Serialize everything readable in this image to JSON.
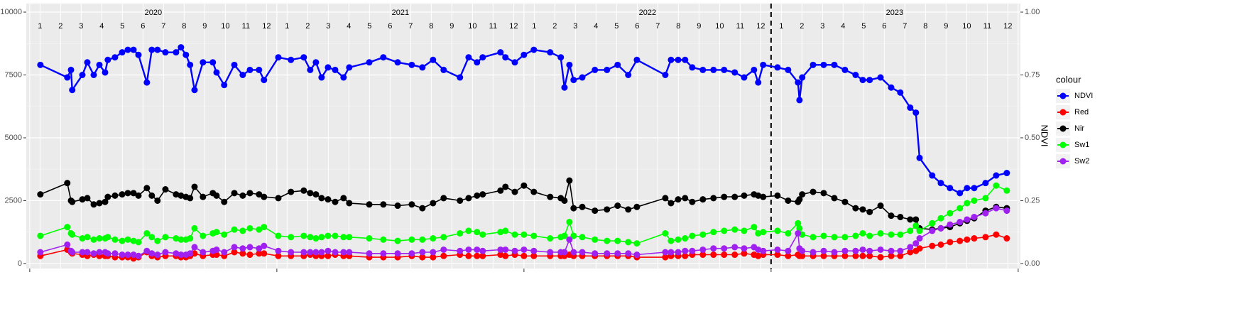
{
  "chart_data": {
    "type": "line",
    "y2_title": "NDVI",
    "legend_title": "colour",
    "legend": "right",
    "grid": true,
    "xlim": [
      2019.986,
      2024.009
    ],
    "xticks": [
      2020,
      2021,
      2022,
      2023,
      2024
    ],
    "ylim": [
      -200,
      10340
    ],
    "yticks": [
      0,
      2500,
      5000,
      7500,
      10000
    ],
    "y2lim": [
      -0.02,
      1.034
    ],
    "y2ticks": [
      {
        "value": 0,
        "label": "0.00"
      },
      {
        "value": 0.25,
        "label": "0.25"
      },
      {
        "value": 0.5,
        "label": "0.50"
      },
      {
        "value": 0.75,
        "label": "0.75"
      },
      {
        "value": 1,
        "label": "1.00"
      }
    ],
    "years": [
      2020,
      2021,
      2022,
      2023
    ],
    "months": [
      1,
      2,
      3,
      4,
      5,
      6,
      7,
      8,
      9,
      10,
      11,
      12
    ],
    "vline": 2023,
    "x": [
      2020.043,
      2020.152,
      2020.167,
      2020.172,
      2020.213,
      2020.233,
      2020.259,
      2020.282,
      2020.305,
      2020.316,
      2020.345,
      2020.374,
      2020.397,
      2020.42,
      2020.44,
      2020.474,
      2020.494,
      2020.517,
      2020.549,
      2020.592,
      2020.612,
      2020.632,
      2020.649,
      2020.667,
      2020.701,
      2020.741,
      2020.756,
      2020.787,
      2020.828,
      2020.862,
      2020.891,
      2020.928,
      2020.948,
      2021.006,
      2021.057,
      2021.109,
      2021.135,
      2021.158,
      2021.181,
      2021.207,
      2021.236,
      2021.27,
      2021.293,
      2021.374,
      2021.431,
      2021.489,
      2021.546,
      2021.589,
      2021.632,
      2021.675,
      2021.741,
      2021.776,
      2021.81,
      2021.833,
      2021.905,
      2021.925,
      2021.963,
      2022.0,
      2022.04,
      2022.106,
      2022.149,
      2022.164,
      2022.184,
      2022.201,
      2022.236,
      2022.287,
      2022.336,
      2022.379,
      2022.422,
      2022.457,
      2022.572,
      2022.595,
      2022.624,
      2022.652,
      2022.681,
      2022.724,
      2022.767,
      2022.81,
      2022.853,
      2022.891,
      2022.931,
      2022.948,
      2022.968,
      2023.026,
      2023.069,
      2023.109,
      2023.115,
      2023.126,
      2023.17,
      2023.213,
      2023.256,
      2023.299,
      2023.342,
      2023.371,
      2023.399,
      2023.443,
      2023.486,
      2023.523,
      2023.563,
      2023.586,
      2023.601,
      2023.652,
      2023.687,
      2023.724,
      2023.764,
      2023.793,
      2023.822,
      2023.868,
      2023.911,
      2023.954
    ],
    "series": [
      {
        "name": "NDVI",
        "color": "#0000ff",
        "axis": "y2",
        "values": [
          0.79,
          0.74,
          0.77,
          0.69,
          0.75,
          0.8,
          0.75,
          0.79,
          0.76,
          0.81,
          0.82,
          0.84,
          0.85,
          0.85,
          0.83,
          0.72,
          0.85,
          0.85,
          0.84,
          0.84,
          0.86,
          0.83,
          0.79,
          0.69,
          0.8,
          0.8,
          0.76,
          0.71,
          0.79,
          0.75,
          0.77,
          0.77,
          0.73,
          0.82,
          0.81,
          0.82,
          0.77,
          0.8,
          0.74,
          0.78,
          0.77,
          0.74,
          0.78,
          0.8,
          0.82,
          0.8,
          0.79,
          0.78,
          0.81,
          0.77,
          0.74,
          0.82,
          0.8,
          0.82,
          0.84,
          0.82,
          0.8,
          0.83,
          0.85,
          0.84,
          0.82,
          0.7,
          0.79,
          0.73,
          0.74,
          0.77,
          0.77,
          0.79,
          0.75,
          0.81,
          0.75,
          0.81,
          0.81,
          0.81,
          0.78,
          0.77,
          0.77,
          0.77,
          0.76,
          0.74,
          0.77,
          0.72,
          0.79,
          0.78,
          0.77,
          0.72,
          0.65,
          0.74,
          0.79,
          0.79,
          0.79,
          0.77,
          0.75,
          0.73,
          0.73,
          0.74,
          0.7,
          0.68,
          0.62,
          0.6,
          0.42,
          0.35,
          0.32,
          0.3,
          0.28,
          0.3,
          0.3,
          0.32,
          0.35,
          0.36
        ]
      },
      {
        "name": "Red",
        "color": "#ff0000",
        "values": [
          300,
          550,
          450,
          400,
          350,
          300,
          350,
          300,
          300,
          300,
          250,
          250,
          250,
          200,
          250,
          450,
          300,
          250,
          300,
          300,
          250,
          250,
          300,
          400,
          300,
          350,
          350,
          300,
          450,
          400,
          350,
          400,
          400,
          300,
          300,
          300,
          350,
          300,
          300,
          300,
          350,
          300,
          300,
          250,
          250,
          250,
          300,
          250,
          250,
          300,
          350,
          300,
          300,
          300,
          350,
          300,
          350,
          300,
          300,
          300,
          300,
          300,
          350,
          300,
          300,
          300,
          300,
          300,
          300,
          250,
          250,
          300,
          300,
          300,
          350,
          350,
          350,
          350,
          350,
          400,
          350,
          300,
          350,
          350,
          300,
          350,
          300,
          300,
          300,
          300,
          300,
          300,
          300,
          300,
          300,
          250,
          300,
          300,
          450,
          500,
          600,
          700,
          750,
          850,
          900,
          950,
          1000,
          1050,
          1150,
          1000
        ]
      },
      {
        "name": "Nir",
        "color": "#000000",
        "values": [
          2750,
          3200,
          2500,
          2450,
          2550,
          2600,
          2350,
          2400,
          2450,
          2650,
          2700,
          2750,
          2800,
          2800,
          2700,
          3000,
          2700,
          2500,
          2950,
          2750,
          2700,
          2650,
          2600,
          3050,
          2650,
          2800,
          2700,
          2450,
          2800,
          2700,
          2800,
          2750,
          2650,
          2600,
          2850,
          2900,
          2800,
          2750,
          2600,
          2550,
          2450,
          2600,
          2400,
          2350,
          2350,
          2300,
          2350,
          2200,
          2400,
          2600,
          2500,
          2600,
          2700,
          2750,
          2900,
          3050,
          2850,
          3100,
          2850,
          2650,
          2600,
          2500,
          3300,
          2200,
          2250,
          2100,
          2150,
          2300,
          2150,
          2250,
          2600,
          2400,
          2550,
          2600,
          2450,
          2550,
          2600,
          2650,
          2650,
          2700,
          2750,
          2700,
          2650,
          2700,
          2500,
          2450,
          2550,
          2750,
          2850,
          2800,
          2600,
          2450,
          2200,
          2150,
          2050,
          2300,
          1900,
          1850,
          1750,
          1750,
          1400,
          1350,
          1400,
          1450,
          1600,
          1700,
          1800,
          2100,
          2250,
          2200
        ]
      },
      {
        "name": "Sw1",
        "color": "#00ff00",
        "values": [
          1100,
          1450,
          1200,
          1150,
          1000,
          1050,
          950,
          1000,
          1000,
          1050,
          950,
          900,
          950,
          900,
          850,
          1200,
          1050,
          900,
          1050,
          1000,
          950,
          950,
          1000,
          1400,
          1100,
          1200,
          1250,
          1150,
          1350,
          1300,
          1400,
          1350,
          1450,
          1100,
          1050,
          1100,
          1050,
          1000,
          1050,
          1100,
          1100,
          1050,
          1050,
          1000,
          950,
          900,
          950,
          950,
          1000,
          1050,
          1200,
          1300,
          1250,
          1150,
          1250,
          1300,
          1150,
          1150,
          1100,
          1000,
          1050,
          1100,
          1650,
          1100,
          1050,
          950,
          900,
          900,
          850,
          800,
          1200,
          900,
          950,
          1000,
          1100,
          1150,
          1250,
          1300,
          1350,
          1300,
          1450,
          1200,
          1250,
          1300,
          1200,
          1600,
          1400,
          1150,
          1050,
          1100,
          1050,
          1050,
          1100,
          1200,
          1100,
          1200,
          1150,
          1150,
          1300,
          1500,
          1300,
          1600,
          1800,
          2000,
          2200,
          2400,
          2500,
          2600,
          3100,
          2900
        ]
      },
      {
        "name": "Sw2",
        "color": "#a020f0",
        "values": [
          450,
          750,
          500,
          450,
          450,
          450,
          400,
          450,
          450,
          400,
          400,
          350,
          350,
          350,
          300,
          500,
          400,
          350,
          450,
          400,
          350,
          350,
          400,
          650,
          450,
          500,
          550,
          450,
          650,
          600,
          650,
          600,
          700,
          500,
          450,
          450,
          450,
          450,
          450,
          500,
          450,
          450,
          450,
          400,
          400,
          400,
          400,
          450,
          450,
          550,
          500,
          550,
          550,
          500,
          550,
          550,
          500,
          550,
          500,
          450,
          450,
          450,
          950,
          450,
          450,
          400,
          400,
          400,
          400,
          350,
          450,
          450,
          450,
          500,
          500,
          550,
          600,
          600,
          650,
          600,
          650,
          550,
          500,
          550,
          500,
          1200,
          600,
          500,
          450,
          500,
          450,
          500,
          500,
          550,
          500,
          550,
          500,
          500,
          650,
          800,
          1000,
          1300,
          1400,
          1550,
          1650,
          1750,
          1850,
          2000,
          2200,
          2100
        ]
      }
    ]
  }
}
